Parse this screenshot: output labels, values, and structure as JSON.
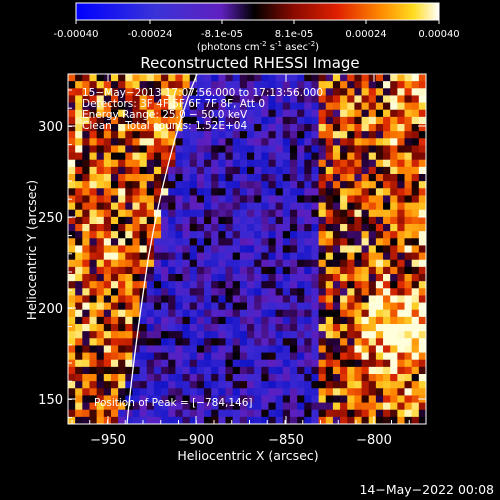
{
  "colorbar": {
    "ticks": [
      "-0.00040",
      "-0.00024",
      "-8.1e-05",
      "8.1e-05",
      "0.00024",
      "0.00040"
    ],
    "units_prefix": "(photons cm",
    "units_sup1": "-2",
    "units_mid1": " s",
    "units_sup2": "-1",
    "units_mid2": " asec",
    "units_sup3": "-2",
    "units_suffix": ")"
  },
  "plot": {
    "title": "Reconstructed RHESSI Image",
    "xlabel": "Heliocentric X (arcsec)",
    "ylabel": "Heliocentric Y (arcsec)",
    "x_ticks": [
      "−950",
      "−900",
      "−850",
      "−800"
    ],
    "y_ticks": [
      "300",
      "250",
      "200",
      "150"
    ],
    "info_lines": [
      "15−May−2013 17:07:56.000 to 17:13:56.000",
      "Detectors: 3F 4F 5F 6F 7F 8F, Att 0",
      "Energy Range: 25.0 − 50.0 keV",
      "Clean    Total counts: 1.52E+04"
    ],
    "peak_label": "Position of Peak = [−784,146]"
  },
  "footer": {
    "timestamp": "14−May−2022 00:08"
  }
}
